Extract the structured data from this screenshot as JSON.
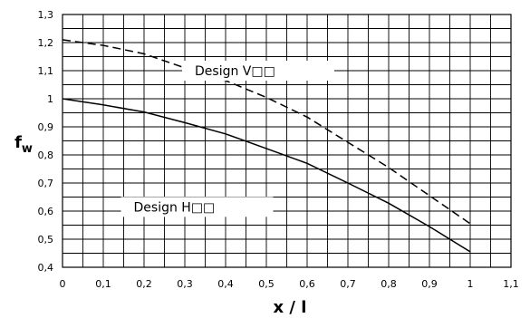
{
  "chart_data": {
    "type": "line",
    "xlabel": "x / l",
    "ylabel": "f",
    "ylabel_subscript": "w",
    "xlim": [
      0,
      1.1
    ],
    "ylim": [
      0.4,
      1.3
    ],
    "x_ticks": [
      "0",
      "0,1",
      "0,2",
      "0,3",
      "0,4",
      "0,5",
      "0,6",
      "0,7",
      "0,8",
      "0,9",
      "1",
      "1,1"
    ],
    "y_ticks": [
      "0,4",
      "0,5",
      "0,6",
      "0,7",
      "0,8",
      "0,9",
      "1",
      "1,1",
      "1,2",
      "1,3"
    ],
    "grid": true,
    "series": [
      {
        "name": "Design V□□",
        "line_style": "dashed",
        "x": [
          0,
          0.1,
          0.2,
          0.3,
          0.4,
          0.5,
          0.6,
          0.7,
          0.8,
          0.9,
          1.0
        ],
        "y": [
          1.21,
          1.19,
          1.16,
          1.11,
          1.065,
          1.005,
          0.935,
          0.845,
          0.755,
          0.655,
          0.555
        ]
      },
      {
        "name": "Design H□□",
        "line_style": "solid",
        "x": [
          0,
          0.1,
          0.2,
          0.3,
          0.4,
          0.5,
          0.6,
          0.7,
          0.8,
          0.9,
          1.0
        ],
        "y": [
          1.0,
          0.978,
          0.953,
          0.915,
          0.875,
          0.823,
          0.77,
          0.7,
          0.628,
          0.545,
          0.455
        ]
      }
    ]
  }
}
